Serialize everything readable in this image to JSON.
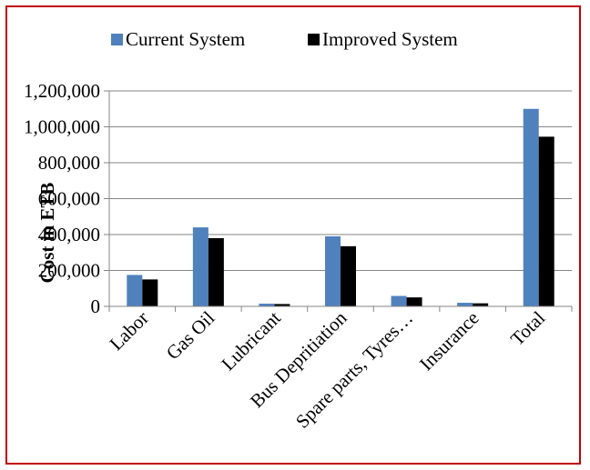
{
  "chart_data": {
    "type": "bar",
    "title": "",
    "xlabel": "",
    "ylabel": "Cost in ETB",
    "ylim": [
      0,
      1200000
    ],
    "yticks": [
      0,
      200000,
      400000,
      600000,
      800000,
      1000000,
      1200000
    ],
    "ytick_labels": [
      "0",
      "200,000",
      "400,000",
      "600,000",
      "800,000",
      "1,000,000",
      "1,200,000"
    ],
    "grid": true,
    "legend_position": "top",
    "categories": [
      "Labor",
      "Gas Oil",
      "Lubricant",
      "Bus Depritiation",
      "Spare parts, Tyres…",
      "Insurance",
      "Total"
    ],
    "series": [
      {
        "name": "Current System",
        "color": "#4f81bd",
        "values": [
          175000,
          440000,
          15000,
          390000,
          58000,
          20000,
          1100000
        ]
      },
      {
        "name": "Improved System",
        "color": "#000000",
        "values": [
          150000,
          380000,
          13000,
          335000,
          50000,
          17000,
          945000
        ]
      }
    ]
  }
}
